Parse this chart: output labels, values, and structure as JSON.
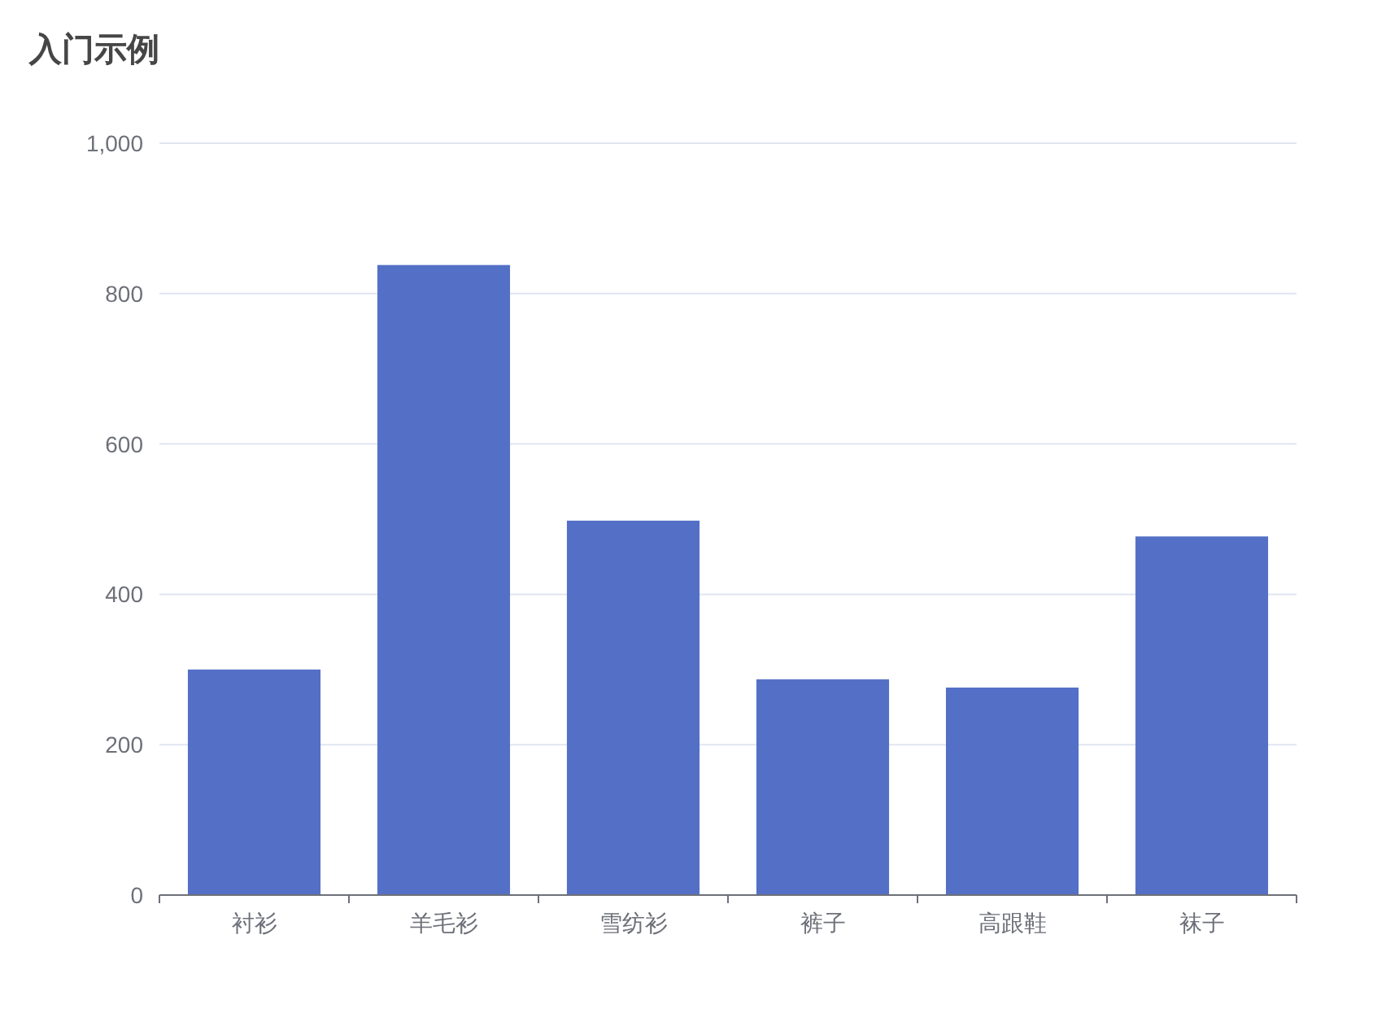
{
  "chart_data": {
    "type": "bar",
    "title": "入门示例",
    "categories": [
      "衬衫",
      "羊毛衫",
      "雪纺衫",
      "裤子",
      "高跟鞋",
      "袜子"
    ],
    "values": [
      300,
      838,
      498,
      287,
      276,
      477
    ],
    "color": "#5470c6",
    "ylim": [
      0,
      1000
    ],
    "yticks": [
      0,
      200,
      400,
      600,
      800,
      {
        "value": 1000,
        "label": "1,000"
      }
    ],
    "grid": "y"
  }
}
